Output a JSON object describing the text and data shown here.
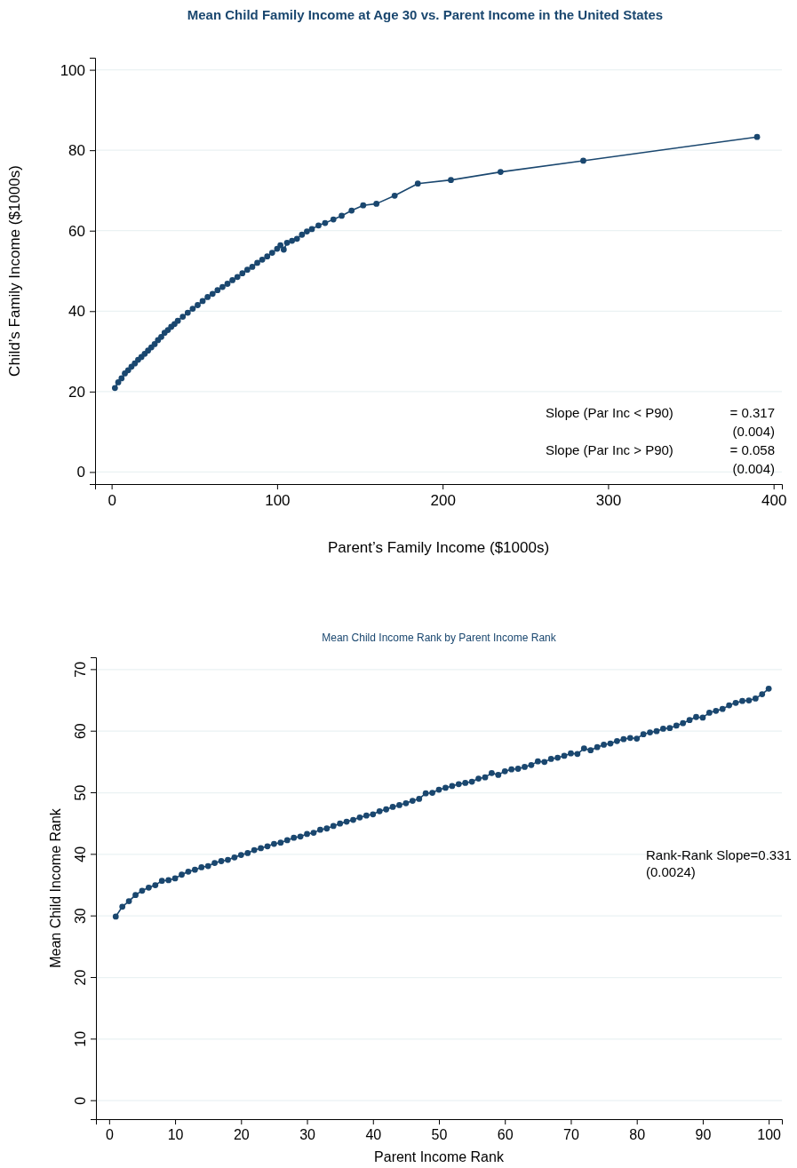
{
  "chart_data": [
    {
      "type": "line",
      "title": "Mean Child Family Income at Age 30 vs. Parent Income in the United States",
      "xlabel": "Parent’s Family Income ($1000s)",
      "ylabel": "Child’s Family Income ($1000s)",
      "x": [
        2,
        4,
        6,
        8,
        10,
        12,
        14,
        16,
        18,
        20,
        22,
        24,
        26,
        28,
        30,
        32,
        34,
        36,
        38,
        40,
        43,
        46,
        49,
        52,
        55,
        58,
        61,
        64,
        67,
        70,
        73,
        76,
        79,
        82,
        85,
        88,
        91,
        94,
        97,
        100,
        102,
        104,
        106,
        109,
        112,
        115,
        118,
        121,
        125,
        129,
        134,
        139,
        145,
        152,
        160,
        171,
        185,
        205,
        235,
        285,
        390
      ],
      "series": [
        {
          "color": "#1a476f",
          "values": [
            20.9,
            22.3,
            23.3,
            24.5,
            25.3,
            26.2,
            27.0,
            27.9,
            28.6,
            29.4,
            30.2,
            31.0,
            31.8,
            32.8,
            33.6,
            34.6,
            35.3,
            36.1,
            36.8,
            37.6,
            38.6,
            39.6,
            40.6,
            41.5,
            42.5,
            43.5,
            44.3,
            45.2,
            46.0,
            46.8,
            47.7,
            48.5,
            49.4,
            50.3,
            51.0,
            52.0,
            52.8,
            53.6,
            54.5,
            55.5,
            56.4,
            55.3,
            57.0,
            57.5,
            58.0,
            59.0,
            59.8,
            60.4,
            61.3,
            61.9,
            62.8,
            63.7,
            65.0,
            66.3,
            66.7,
            68.7,
            71.7,
            72.6,
            74.6,
            77.4,
            83.3
          ]
        }
      ],
      "xlim": [
        -10,
        405
      ],
      "ylim": [
        -3,
        103
      ],
      "xticks": [
        0,
        100,
        200,
        300,
        400
      ],
      "yticks": [
        0,
        20,
        40,
        60,
        80,
        100
      ],
      "grid": "y",
      "marker": "circle",
      "line_style": "solid",
      "annotations": [
        "Slope (Par Inc < P90)",
        "= 0.317",
        "(0.004)",
        "Slope (Par  Inc > P90)",
        "= 0.058",
        "(0.004)"
      ]
    },
    {
      "type": "line",
      "title": "Mean Child Income Rank by Parent Income Rank",
      "xlabel": "Parent Income Rank",
      "ylabel": "Mean Child Income Rank",
      "x": [
        1,
        2,
        3,
        4,
        5,
        6,
        7,
        8,
        9,
        10,
        11,
        12,
        13,
        14,
        15,
        16,
        17,
        18,
        19,
        20,
        21,
        22,
        23,
        24,
        25,
        26,
        27,
        28,
        29,
        30,
        31,
        32,
        33,
        34,
        35,
        36,
        37,
        38,
        39,
        40,
        41,
        42,
        43,
        44,
        45,
        46,
        47,
        48,
        49,
        50,
        51,
        52,
        53,
        54,
        55,
        56,
        57,
        58,
        59,
        60,
        61,
        62,
        63,
        64,
        65,
        66,
        67,
        68,
        69,
        70,
        71,
        72,
        73,
        74,
        75,
        76,
        77,
        78,
        79,
        80,
        81,
        82,
        83,
        84,
        85,
        86,
        87,
        88,
        89,
        90,
        91,
        92,
        93,
        94,
        95,
        96,
        97,
        98,
        99,
        100
      ],
      "series": [
        {
          "color": "#1a476f",
          "values": [
            29.9,
            31.5,
            32.4,
            33.4,
            34.1,
            34.6,
            35.0,
            35.7,
            35.8,
            36.1,
            36.7,
            37.2,
            37.5,
            37.9,
            38.1,
            38.6,
            38.9,
            39.1,
            39.5,
            39.9,
            40.2,
            40.7,
            41.0,
            41.3,
            41.7,
            41.9,
            42.3,
            42.7,
            42.9,
            43.3,
            43.5,
            44.0,
            44.2,
            44.6,
            45.0,
            45.3,
            45.6,
            46.0,
            46.3,
            46.5,
            47.0,
            47.3,
            47.7,
            48.0,
            48.3,
            48.7,
            49.0,
            49.9,
            50.0,
            50.5,
            50.8,
            51.1,
            51.4,
            51.6,
            51.8,
            52.3,
            52.5,
            53.2,
            52.9,
            53.5,
            53.8,
            53.9,
            54.2,
            54.5,
            55.1,
            55.0,
            55.5,
            55.7,
            56.0,
            56.4,
            56.3,
            57.2,
            56.9,
            57.4,
            57.8,
            58.0,
            58.4,
            58.7,
            58.9,
            58.8,
            59.5,
            59.8,
            60.0,
            60.4,
            60.5,
            60.9,
            61.3,
            61.8,
            62.3,
            62.2,
            63.0,
            63.3,
            63.6,
            64.2,
            64.6,
            64.9,
            65.0,
            65.3,
            66.0,
            66.9
          ]
        }
      ],
      "xlim": [
        -2,
        102
      ],
      "ylim": [
        -3,
        72
      ],
      "xticks": [
        0,
        10,
        20,
        30,
        40,
        50,
        60,
        70,
        80,
        90,
        100
      ],
      "yticks": [
        0,
        10,
        20,
        30,
        40,
        50,
        60,
        70
      ],
      "grid": "y",
      "marker": "circle",
      "line_style": "solid",
      "annotations": [
        "Rank-Rank Slope=0.331",
        "(0.0024)"
      ]
    }
  ]
}
